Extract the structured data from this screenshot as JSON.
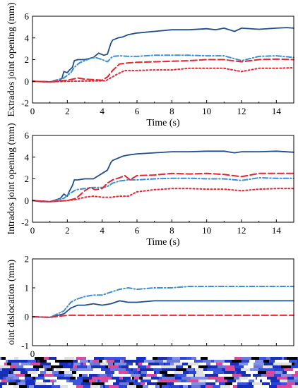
{
  "colors": {
    "solid": "#1f4e8c",
    "dashdot": "#3a8fd6",
    "dashed": "#e8242e",
    "dotted": "#e8242e"
  },
  "chart_data": [
    {
      "type": "line",
      "xlabel": "Time (s)",
      "ylabel": "Extrados joint opening (mm)",
      "xlim": [
        0,
        15
      ],
      "ylim": [
        -2,
        6
      ],
      "xticks": [
        0,
        2,
        4,
        6,
        8,
        10,
        12,
        14
      ],
      "yticks": [
        -2,
        0,
        2,
        4,
        6
      ],
      "series": [
        {
          "style": "solid",
          "x": [
            0,
            1,
            1.5,
            1.7,
            1.8,
            2.0,
            2.1,
            2.3,
            2.4,
            2.6,
            3.0,
            3.5,
            3.8,
            4.1,
            4.3,
            4.5,
            4.6,
            4.9,
            5.2,
            5.5,
            6,
            7,
            8,
            9,
            10,
            10.5,
            11,
            11.6,
            12,
            13,
            14,
            14.6,
            15
          ],
          "y": [
            0,
            -0.05,
            0,
            0.3,
            0.9,
            0.8,
            1.0,
            1.3,
            1.9,
            2.0,
            2.0,
            2.2,
            2.6,
            2.4,
            2.5,
            3.5,
            3.8,
            4.0,
            4.1,
            4.3,
            4.45,
            4.6,
            4.75,
            4.75,
            4.85,
            4.75,
            4.9,
            4.6,
            4.9,
            4.8,
            4.9,
            4.95,
            4.9
          ]
        },
        {
          "style": "dashdot",
          "x": [
            0,
            1,
            1.8,
            2.2,
            2.4,
            2.7,
            3.0,
            3.3,
            3.6,
            4.0,
            4.3,
            4.6,
            5.0,
            5.5,
            6,
            7,
            8,
            9,
            10,
            11,
            12,
            13,
            14,
            15
          ],
          "y": [
            0,
            -0.05,
            0.3,
            0.8,
            1.3,
            1.7,
            1.9,
            2.1,
            2.2,
            2.0,
            1.8,
            2.3,
            2.35,
            2.3,
            2.3,
            2.4,
            2.4,
            2.4,
            2.35,
            2.35,
            1.9,
            2.3,
            2.35,
            2.2
          ]
        },
        {
          "style": "dashed",
          "x": [
            0,
            1,
            2,
            2.3,
            2.6,
            3.0,
            3.5,
            4.0,
            4.3,
            4.6,
            5.0,
            5.5,
            6,
            7,
            8,
            9,
            10,
            11,
            12,
            13,
            14,
            15
          ],
          "y": [
            0,
            -0.05,
            0.1,
            0.2,
            0.3,
            0.2,
            0.15,
            0.1,
            0.4,
            1.0,
            1.6,
            1.7,
            1.75,
            1.8,
            1.85,
            1.9,
            2.0,
            2.0,
            1.8,
            2.0,
            2.05,
            2.0
          ]
        },
        {
          "style": "dotted",
          "x": [
            0,
            1,
            2,
            4.2,
            4.8,
            5.3,
            6,
            7,
            8,
            9,
            10,
            11,
            12,
            13,
            14,
            15
          ],
          "y": [
            0,
            -0.05,
            0,
            0.05,
            0.6,
            1.0,
            1.0,
            1.05,
            1.05,
            1.2,
            1.2,
            1.2,
            0.9,
            1.2,
            1.2,
            1.25
          ]
        }
      ]
    },
    {
      "type": "line",
      "xlabel": "Time (s)",
      "ylabel": "Intrados joint opening (mm)",
      "xlim": [
        0,
        15
      ],
      "ylim": [
        -2,
        6
      ],
      "xticks": [
        0,
        2,
        4,
        6,
        8,
        10,
        12,
        14
      ],
      "yticks": [
        -2,
        0,
        2,
        4,
        6
      ],
      "series": [
        {
          "style": "solid",
          "x": [
            0,
            0.5,
            1,
            1.6,
            1.8,
            2.0,
            2.1,
            2.3,
            2.4,
            2.6,
            3.0,
            3.5,
            3.8,
            4.1,
            4.3,
            4.5,
            4.6,
            4.9,
            5.2,
            5.5,
            6,
            7,
            8,
            9,
            10,
            11,
            11.6,
            12,
            13,
            14,
            15
          ],
          "y": [
            0,
            -0.1,
            -0.1,
            0.2,
            0.6,
            0.4,
            0.8,
            1.4,
            1.9,
            1.9,
            2.0,
            2.0,
            2.3,
            2.6,
            2.8,
            3.5,
            3.7,
            3.9,
            4.1,
            4.2,
            4.3,
            4.4,
            4.5,
            4.5,
            4.55,
            4.55,
            4.4,
            4.5,
            4.5,
            4.55,
            4.45
          ]
        },
        {
          "style": "dashdot",
          "x": [
            0,
            1,
            1.8,
            2.1,
            2.5,
            3.0,
            3.5,
            4.0,
            4.3,
            4.6,
            5.0,
            5.5,
            6,
            7,
            8,
            9,
            10,
            11,
            12,
            13,
            14,
            15
          ],
          "y": [
            0,
            -0.1,
            0.2,
            0.6,
            1.0,
            1.1,
            1.2,
            1.2,
            1.3,
            1.6,
            1.8,
            1.9,
            1.9,
            2.0,
            2.05,
            2.05,
            2.0,
            2.0,
            1.85,
            2.1,
            2.05,
            2.05
          ]
        },
        {
          "style": "dashed",
          "x": [
            0,
            1,
            2,
            2.5,
            3.0,
            3.3,
            3.6,
            4.0,
            4.3,
            4.6,
            5.0,
            5.3,
            5.6,
            6,
            7,
            8,
            9,
            10,
            11,
            12,
            13,
            14,
            15
          ],
          "y": [
            0,
            -0.1,
            0,
            0.2,
            0.9,
            1.2,
            1.0,
            1.1,
            1.6,
            1.9,
            2.1,
            2.3,
            1.9,
            2.3,
            2.35,
            2.5,
            2.45,
            2.5,
            2.4,
            2.2,
            2.5,
            2.5,
            2.5
          ]
        },
        {
          "style": "dotted",
          "x": [
            0,
            1,
            2,
            2.5,
            3.0,
            3.5,
            4.0,
            4.5,
            5.0,
            5.5,
            6,
            7,
            8,
            9,
            10,
            11,
            12,
            13,
            14,
            15
          ],
          "y": [
            0,
            -0.1,
            0,
            0.1,
            0.3,
            0.4,
            0.3,
            0.3,
            0.4,
            0.4,
            0.8,
            1.0,
            1.1,
            1.1,
            1.05,
            1.05,
            0.9,
            1.05,
            1.1,
            1.1
          ]
        }
      ]
    },
    {
      "type": "line",
      "xlabel": "",
      "ylabel": "oint dislocation (mm)",
      "xlim": [
        0,
        15
      ],
      "ylim": [
        -1,
        2
      ],
      "xticks": [
        0,
        2,
        4,
        6,
        8,
        10,
        12,
        14
      ],
      "visible_xtick_labels": [
        "0"
      ],
      "yticks": [
        -1,
        0,
        1,
        2
      ],
      "series": [
        {
          "style": "solid",
          "x": [
            0,
            1,
            1.8,
            2.2,
            2.6,
            3.0,
            3.5,
            4.0,
            4.5,
            5.0,
            5.5,
            6,
            7,
            8,
            9,
            10,
            11,
            12,
            13,
            14,
            15
          ],
          "y": [
            0,
            -0.02,
            0.1,
            0.3,
            0.4,
            0.4,
            0.45,
            0.4,
            0.45,
            0.55,
            0.5,
            0.5,
            0.55,
            0.55,
            0.55,
            0.55,
            0.55,
            0.55,
            0.55,
            0.55,
            0.55
          ]
        },
        {
          "style": "dashdot",
          "x": [
            0,
            1,
            1.8,
            2.2,
            2.5,
            3.0,
            3.5,
            4.0,
            4.5,
            5.0,
            5.5,
            6,
            7,
            8,
            9,
            10,
            11,
            12,
            13,
            14,
            15
          ],
          "y": [
            0,
            -0.02,
            0.2,
            0.5,
            0.6,
            0.7,
            0.75,
            0.75,
            0.85,
            0.95,
            1.0,
            0.95,
            1.0,
            1.0,
            1.05,
            1.05,
            1.05,
            1.05,
            1.05,
            1.05,
            1.05
          ]
        },
        {
          "style": "dashed",
          "x": [
            0,
            1,
            2,
            3,
            4,
            5,
            6,
            7,
            8,
            9,
            10,
            11,
            12,
            13,
            14,
            15
          ],
          "y": [
            0,
            -0.02,
            0.05,
            0.05,
            0.05,
            0.05,
            0.05,
            0.05,
            0.05,
            0.05,
            0.05,
            0.05,
            0.05,
            0.05,
            0.05,
            0.05
          ]
        }
      ]
    }
  ]
}
